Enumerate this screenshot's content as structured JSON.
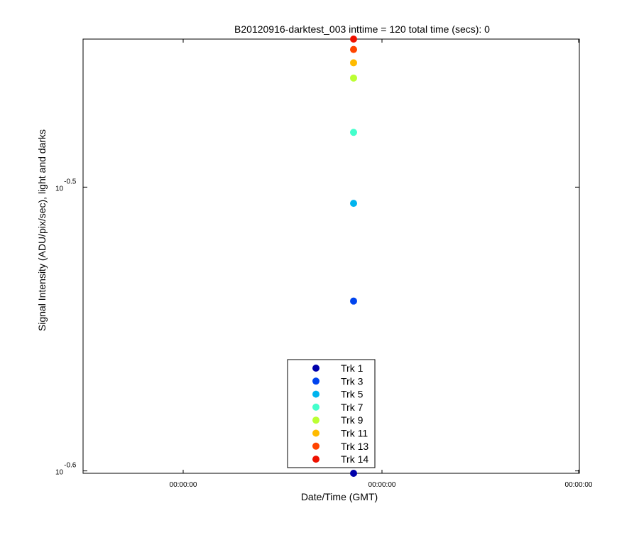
{
  "chart_data": {
    "type": "scatter",
    "title": "B20120916-darktest_003 inttime = 120 total time (secs): 0",
    "xlabel": "Date/Time (GMT)",
    "ylabel": "Signal Intensity (ADU/pix/sec), light and darks",
    "yscale": "log",
    "ylim": [
      0.2507,
      0.3566
    ],
    "x_tick_labels": [
      "00:00:00",
      "00:00:00",
      "00:00:00"
    ],
    "y_ticks": [
      {
        "base": "10",
        "exponent": "-0.5",
        "value": 0.31623
      },
      {
        "base": "10",
        "exponent": "-0.6",
        "value": 0.25119
      }
    ],
    "grid": false,
    "legend_position": "bottom-center",
    "series": [
      {
        "name": "Trk 1",
        "color": "#0000aa",
        "y": 0.2507
      },
      {
        "name": "Trk 3",
        "color": "#0044ee",
        "y": 0.2883
      },
      {
        "name": "Trk 5",
        "color": "#00b4ee",
        "y": 0.3121
      },
      {
        "name": "Trk 7",
        "color": "#44ffcc",
        "y": 0.3306
      },
      {
        "name": "Trk 9",
        "color": "#bbff33",
        "y": 0.3455
      },
      {
        "name": "Trk 11",
        "color": "#ffbb00",
        "y": 0.3498
      },
      {
        "name": "Trk 13",
        "color": "#ff4400",
        "y": 0.3536
      },
      {
        "name": "Trk 14",
        "color": "#ee1100",
        "y": 0.3566
      }
    ]
  }
}
